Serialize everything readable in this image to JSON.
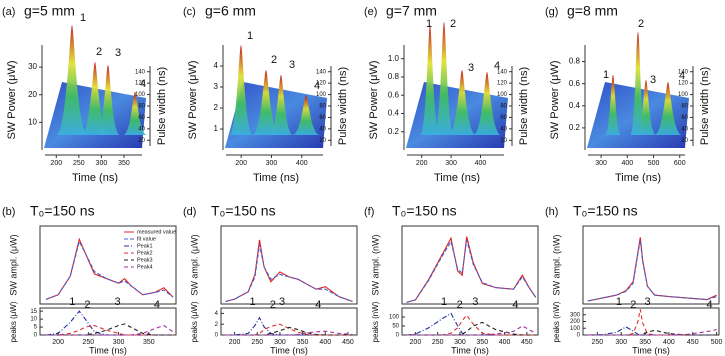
{
  "chart_data": [
    {
      "type": "surface",
      "panel": "(a)",
      "title": "g=5 mm",
      "ylabel": "SW Power (μW)",
      "ylim": [
        0,
        38
      ],
      "yticks": [
        10,
        20,
        30
      ],
      "xlabel": "Time (ns)",
      "xlim": [
        175,
        390
      ],
      "xticks": [
        200,
        250,
        300,
        350
      ],
      "zlabel": "Pulse width (ns)",
      "zlim": [
        10,
        150
      ],
      "zticks": [
        20,
        40,
        60,
        80,
        100,
        120,
        140
      ],
      "peak_labels": [
        "1",
        "2",
        "3",
        "4"
      ]
    },
    {
      "type": "surface",
      "panel": "(c)",
      "title": "g=6 mm",
      "ylabel": "SW Power (μW)",
      "ylim": [
        0,
        5
      ],
      "yticks": [
        1,
        2,
        3,
        4
      ],
      "xlabel": "Time (ns)",
      "xlim": [
        150,
        470
      ],
      "xticks": [
        200,
        300,
        400
      ],
      "zlabel": "Pulse width (ns)",
      "zlim": [
        10,
        150
      ],
      "zticks": [
        20,
        40,
        60,
        80,
        100,
        120,
        140
      ],
      "peak_labels": [
        "1",
        "2",
        "3",
        "4"
      ]
    },
    {
      "type": "surface",
      "panel": "(e)",
      "title": "g=7 mm",
      "ylabel": "SW Power (μW)",
      "ylim": [
        0,
        1.15
      ],
      "yticks": [
        0.2,
        0.4,
        0.6,
        0.8,
        {
          "value": 1,
          "label": "1.0"
        }
      ],
      "xlabel": "Time (ns)",
      "xlim": [
        150,
        480
      ],
      "xticks": [
        200,
        300,
        400
      ],
      "zlabel": "Pulse width (ns)",
      "zlim": [
        10,
        150
      ],
      "zticks": [
        20,
        40,
        60,
        80,
        100,
        120,
        140
      ],
      "peak_labels": [
        "1",
        "2",
        "3",
        "4"
      ]
    },
    {
      "type": "surface",
      "panel": "(g)",
      "title": "g=8 mm",
      "ylabel": "SW Power (μW)",
      "ylim": [
        0,
        0.95
      ],
      "yticks": [
        0.2,
        0.4,
        0.6,
        0.8
      ],
      "xlabel": "Time (ns)",
      "xlim": [
        250,
        620
      ],
      "xticks": [
        300,
        400,
        500,
        600
      ],
      "zlabel": "Pulse width (ns)",
      "zlim": [
        10,
        150
      ],
      "zticks": [
        20,
        40,
        60,
        80,
        100,
        120,
        140
      ],
      "peak_labels": [
        "1",
        "2",
        "3",
        "4"
      ]
    },
    {
      "type": "line",
      "panel": "(b)",
      "title": "T₀=150 ns",
      "ylabel": "SW ampl. (μW)",
      "ylim": [
        0,
        32
      ],
      "xlabel": "Time (ns)",
      "xlim": [
        170,
        395
      ],
      "xticks": [
        200,
        250,
        300,
        350
      ],
      "x": [
        180,
        200,
        220,
        235,
        245,
        260,
        280,
        300,
        310,
        320,
        340,
        360,
        375,
        390
      ],
      "series": [
        {
          "name": "measured value",
          "color": "#e02020",
          "dash": "",
          "values": [
            2,
            4,
            12,
            28,
            22,
            13,
            11,
            9,
            11,
            8,
            4,
            5,
            7,
            3
          ]
        },
        {
          "name": "fit value",
          "color": "#4060d0",
          "dash": "4 2",
          "values": [
            2,
            4,
            12,
            27,
            22,
            14,
            11,
            9,
            10,
            8,
            4,
            5,
            6,
            3
          ]
        }
      ],
      "peaks": {
        "ylabel": "peaks (μW)",
        "ylim": [
          0,
          17
        ],
        "yticks": [
          0,
          5,
          10,
          15
        ],
        "labels": [
          "1",
          "2",
          "3",
          "4"
        ],
        "series": [
          {
            "name": "Peak1",
            "color": "#2030a0",
            "dash": "5 2 1 2",
            "values": [
              0,
              1,
              8,
              15,
              10,
              2,
              0,
              0,
              0,
              0,
              0,
              0,
              0,
              0
            ]
          },
          {
            "name": "Peak2",
            "color": "#e03030",
            "dash": "4 3",
            "values": [
              0,
              0,
              1,
              3,
              5,
              6,
              3,
              1,
              0,
              0,
              0,
              0,
              0,
              0
            ]
          },
          {
            "name": "Peak3",
            "color": "#202020",
            "dash": "4 3",
            "values": [
              0,
              0,
              0,
              0,
              0,
              1,
              3,
              6,
              7,
              5,
              1,
              0,
              0,
              0
            ]
          },
          {
            "name": "Peak4",
            "color": "#a030a0",
            "dash": "4 3",
            "values": [
              0,
              0,
              0,
              0,
              0,
              0,
              0,
              0,
              0,
              0,
              1,
              4,
              6,
              2
            ]
          }
        ]
      }
    },
    {
      "type": "line",
      "panel": "(d)",
      "title": "T₀=150 ns",
      "ylabel": "SW ampl. (μW)",
      "ylim": [
        0,
        3
      ],
      "xlabel": "Time (ns)",
      "xlim": [
        170,
        470
      ],
      "xticks": [
        200,
        250,
        300,
        350,
        400,
        450
      ],
      "x": [
        180,
        200,
        230,
        245,
        255,
        265,
        280,
        300,
        320,
        340,
        360,
        380,
        400,
        430,
        460
      ],
      "series": [
        {
          "color": "#e02020",
          "dash": "",
          "values": [
            0.1,
            0.2,
            0.5,
            1.2,
            2.6,
            1.5,
            0.9,
            1.3,
            1.1,
            1.0,
            0.8,
            0.6,
            0.7,
            0.3,
            0.1
          ]
        },
        {
          "color": "#4060d0",
          "dash": "4 2",
          "values": [
            0.1,
            0.2,
            0.5,
            1.1,
            2.4,
            1.5,
            1.0,
            1.2,
            1.1,
            1.0,
            0.8,
            0.6,
            0.6,
            0.3,
            0.1
          ]
        }
      ],
      "peaks": {
        "ylabel": "peaks (μW)",
        "ylim": [
          0,
          5
        ],
        "yticks": [
          0,
          2,
          4
        ],
        "labels": [
          "1",
          "2",
          "3",
          "4"
        ],
        "series": [
          {
            "color": "#2030a0",
            "dash": "5 2 1 2",
            "values": [
              0,
              0,
              0.3,
              1.8,
              3.2,
              1.5,
              0.3,
              0,
              0,
              0,
              0,
              0,
              0,
              0,
              0
            ]
          },
          {
            "color": "#e03030",
            "dash": "4 3",
            "values": [
              0,
              0,
              0,
              0,
              0.3,
              1,
              1.6,
              2,
              1.2,
              0.5,
              0.1,
              0,
              0,
              0,
              0
            ]
          },
          {
            "color": "#202020",
            "dash": "4 3",
            "values": [
              0,
              0,
              0,
              0,
              0,
              0,
              0.3,
              0.8,
              1.4,
              1.0,
              0.4,
              0.1,
              0,
              0,
              0
            ]
          },
          {
            "color": "#a030a0",
            "dash": "4 3",
            "values": [
              0,
              0,
              0,
              0,
              0,
              0,
              0,
              0,
              0,
              0.1,
              0.4,
              0.6,
              0.7,
              0.3,
              0.1
            ]
          }
        ]
      }
    },
    {
      "type": "line",
      "panel": "(f)",
      "title": "T₀=150 ns",
      "ylabel": "SW ampl. (nW)",
      "ylim": [
        0,
        900
      ],
      "xlabel": "Time (ns)",
      "xlim": [
        170,
        475
      ],
      "xticks": [
        200,
        250,
        300,
        350,
        400,
        450
      ],
      "x": [
        180,
        200,
        230,
        260,
        280,
        295,
        305,
        315,
        330,
        350,
        380,
        420,
        440,
        455,
        470
      ],
      "series": [
        {
          "color": "#e02020",
          "dash": "",
          "values": [
            20,
            50,
            300,
            600,
            800,
            400,
            350,
            820,
            500,
            250,
            200,
            180,
            350,
            200,
            80
          ]
        },
        {
          "color": "#4060d0",
          "dash": "4 2",
          "values": [
            20,
            50,
            290,
            580,
            760,
            420,
            380,
            780,
            480,
            260,
            200,
            180,
            330,
            200,
            80
          ]
        }
      ],
      "peaks": {
        "ylabel": "peaks (nW)",
        "ylim": [
          0,
          150
        ],
        "yticks": [
          0,
          50,
          100
        ],
        "labels": [
          "1",
          "2",
          "3",
          "4"
        ],
        "series": [
          {
            "color": "#2030a0",
            "dash": "5 2 1 2",
            "values": [
              0,
              5,
              40,
              90,
              120,
              50,
              10,
              0,
              0,
              0,
              0,
              0,
              0,
              0,
              0
            ]
          },
          {
            "color": "#e03030",
            "dash": "4 3",
            "values": [
              0,
              0,
              0,
              0,
              10,
              40,
              80,
              110,
              60,
              10,
              0,
              0,
              0,
              0,
              0
            ]
          },
          {
            "color": "#202020",
            "dash": "4 3",
            "values": [
              0,
              0,
              0,
              0,
              0,
              0,
              5,
              20,
              50,
              70,
              30,
              5,
              0,
              0,
              0
            ]
          },
          {
            "color": "#a030a0",
            "dash": "4 3",
            "values": [
              0,
              0,
              0,
              0,
              0,
              0,
              0,
              0,
              0,
              0,
              5,
              20,
              50,
              30,
              10
            ]
          }
        ]
      }
    },
    {
      "type": "line",
      "panel": "(h)",
      "title": "T₀=150 ns",
      "ylabel": "SW ampl. (nW)",
      "ylim": [
        0,
        500
      ],
      "xlabel": "Time (ns)",
      "xlim": [
        220,
        505
      ],
      "xticks": [
        250,
        300,
        350,
        400,
        450,
        500
      ],
      "x": [
        230,
        260,
        290,
        310,
        325,
        335,
        340,
        345,
        355,
        370,
        400,
        440,
        480,
        500
      ],
      "series": [
        {
          "color": "#e02020",
          "dash": "",
          "values": [
            20,
            40,
            60,
            90,
            150,
            350,
            450,
            300,
            120,
            60,
            50,
            40,
            30,
            60
          ]
        },
        {
          "color": "#4060d0",
          "dash": "4 2",
          "values": [
            20,
            40,
            60,
            85,
            140,
            340,
            430,
            290,
            120,
            60,
            50,
            40,
            30,
            50
          ]
        }
      ],
      "peaks": {
        "ylabel": "peaks (nW)",
        "ylim": [
          0,
          400
        ],
        "yticks": [
          0,
          100,
          200,
          300
        ],
        "labels": [
          "1",
          "2",
          "3",
          "4"
        ],
        "series": [
          {
            "color": "#2030a0",
            "dash": "5 2 1 2",
            "values": [
              0,
              5,
              40,
              120,
              60,
              10,
              0,
              0,
              0,
              0,
              0,
              0,
              0,
              0
            ]
          },
          {
            "color": "#e03030",
            "dash": "4 3",
            "values": [
              0,
              0,
              0,
              0,
              20,
              200,
              380,
              180,
              20,
              0,
              0,
              0,
              0,
              0
            ]
          },
          {
            "color": "#202020",
            "dash": "4 3",
            "values": [
              0,
              0,
              0,
              0,
              0,
              0,
              0,
              10,
              40,
              70,
              20,
              0,
              0,
              0
            ]
          },
          {
            "color": "#a030a0",
            "dash": "4 3",
            "values": [
              0,
              0,
              0,
              0,
              0,
              0,
              0,
              0,
              0,
              0,
              0,
              10,
              50,
              80
            ]
          }
        ]
      }
    }
  ]
}
